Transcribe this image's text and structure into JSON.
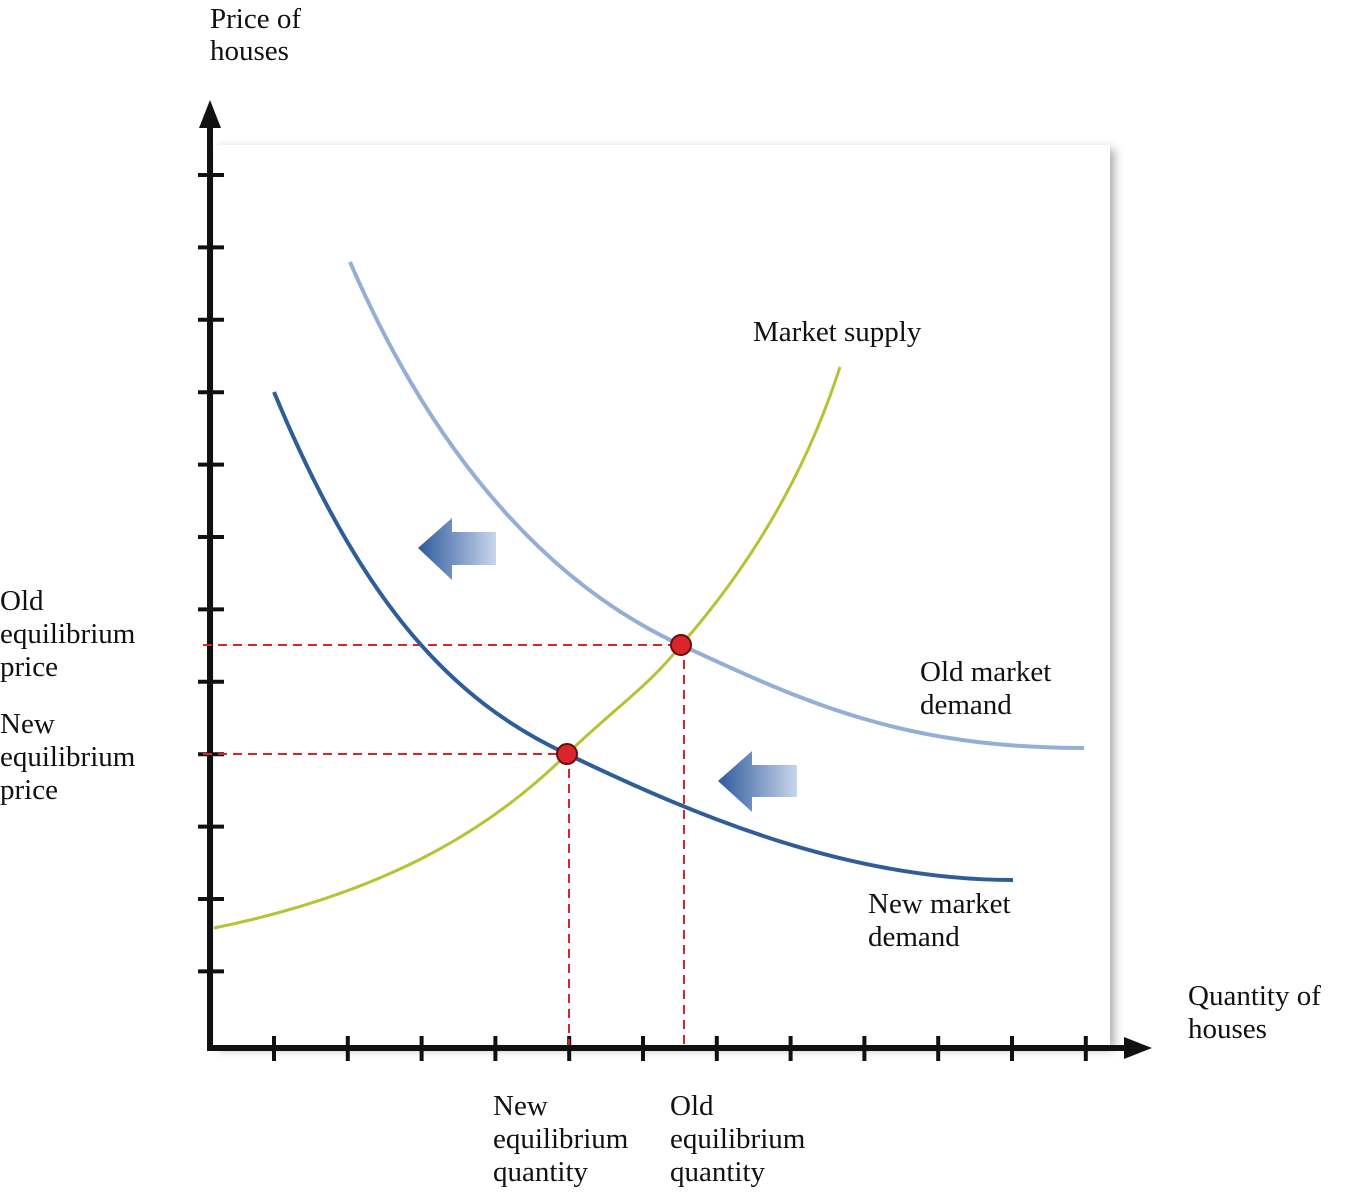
{
  "axes": {
    "y_label": [
      "Price of",
      "houses"
    ],
    "x_label": [
      "Quantity of",
      "houses"
    ]
  },
  "curves": {
    "supply": [
      "Market supply"
    ],
    "old_demand": [
      "Old market",
      "demand"
    ],
    "new_demand": [
      "New market",
      "demand"
    ]
  },
  "equilibria": {
    "old_price": [
      "Old",
      "equilibrium",
      "price"
    ],
    "new_price": [
      "New",
      "equilibrium",
      "price"
    ],
    "new_quantity": [
      "New",
      "equilibrium",
      "quantity"
    ],
    "old_quantity": [
      "Old",
      "equilibrium",
      "quantity"
    ]
  }
}
